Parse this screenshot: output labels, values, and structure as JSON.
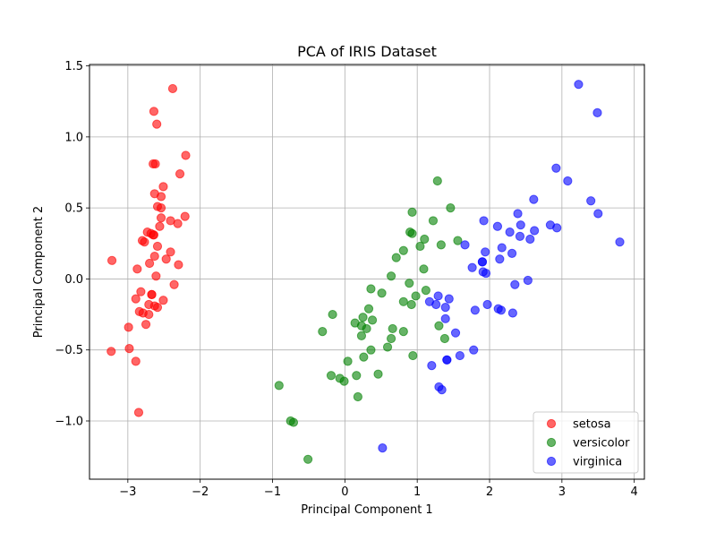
{
  "chart_data": {
    "type": "scatter",
    "title": "PCA of IRIS Dataset",
    "xlabel": "Principal Component 1",
    "ylabel": "Principal Component 2",
    "xlim": [
      -3.53,
      4.14
    ],
    "ylim": [
      -1.41,
      1.51
    ],
    "xticks": [
      -3,
      -2,
      -1,
      0,
      1,
      2,
      3,
      4
    ],
    "xtick_labels": [
      "−3",
      "−2",
      "−1",
      "0",
      "1",
      "2",
      "3",
      "4"
    ],
    "yticks": [
      -1.0,
      -0.5,
      0.0,
      0.5,
      1.0,
      1.5
    ],
    "ytick_labels": [
      "−1.0",
      "−0.5",
      "0.0",
      "0.5",
      "1.0",
      "1.5"
    ],
    "grid": true,
    "legend_position": "lower-right",
    "series": [
      {
        "name": "setosa",
        "color": "#ff0000",
        "points": [
          [
            -2.68,
            0.32
          ],
          [
            -2.71,
            -0.18
          ],
          [
            -2.89,
            -0.14
          ],
          [
            -2.75,
            -0.32
          ],
          [
            -2.73,
            0.33
          ],
          [
            -2.28,
            0.74
          ],
          [
            -2.82,
            -0.09
          ],
          [
            -2.63,
            0.16
          ],
          [
            -2.89,
            -0.58
          ],
          [
            -2.67,
            -0.11
          ],
          [
            -2.51,
            0.65
          ],
          [
            -2.61,
            0.02
          ],
          [
            -2.79,
            -0.24
          ],
          [
            -3.23,
            -0.51
          ],
          [
            -2.64,
            1.18
          ],
          [
            -2.38,
            1.34
          ],
          [
            -2.62,
            0.81
          ],
          [
            -2.65,
            0.31
          ],
          [
            -2.2,
            0.87
          ],
          [
            -2.59,
            0.51
          ],
          [
            -2.31,
            0.39
          ],
          [
            -2.54,
            0.43
          ],
          [
            -3.22,
            0.13
          ],
          [
            -2.3,
            0.1
          ],
          [
            -2.36,
            -0.04
          ],
          [
            -2.51,
            -0.15
          ],
          [
            -2.47,
            0.14
          ],
          [
            -2.56,
            0.37
          ],
          [
            -2.64,
            0.31
          ],
          [
            -2.63,
            -0.19
          ],
          [
            -2.59,
            -0.2
          ],
          [
            -2.41,
            0.41
          ],
          [
            -2.65,
            0.81
          ],
          [
            -2.6,
            1.09
          ],
          [
            -2.67,
            -0.11
          ],
          [
            -2.87,
            0.07
          ],
          [
            -2.63,
            0.6
          ],
          [
            -2.8,
            0.27
          ],
          [
            -2.98,
            -0.49
          ],
          [
            -2.59,
            0.23
          ],
          [
            -2.77,
            0.26
          ],
          [
            -2.85,
            -0.94
          ],
          [
            -2.99,
            -0.34
          ],
          [
            -2.41,
            0.19
          ],
          [
            -2.21,
            0.44
          ],
          [
            -2.71,
            -0.25
          ],
          [
            -2.54,
            0.5
          ],
          [
            -2.84,
            -0.23
          ],
          [
            -2.54,
            0.58
          ],
          [
            -2.7,
            0.11
          ]
        ]
      },
      {
        "name": "versicolor",
        "color": "#008000",
        "points": [
          [
            1.28,
            0.69
          ],
          [
            0.93,
            0.32
          ],
          [
            1.46,
            0.5
          ],
          [
            0.18,
            -0.83
          ],
          [
            1.09,
            0.07
          ],
          [
            0.64,
            -0.42
          ],
          [
            1.1,
            0.28
          ],
          [
            -0.75,
            -1.0
          ],
          [
            1.04,
            0.23
          ],
          [
            -0.01,
            -0.72
          ],
          [
            -0.51,
            -1.27
          ],
          [
            0.51,
            -0.1
          ],
          [
            0.26,
            -0.55
          ],
          [
            0.98,
            -0.12
          ],
          [
            -0.17,
            -0.25
          ],
          [
            0.93,
            0.47
          ],
          [
            0.66,
            -0.35
          ],
          [
            0.23,
            -0.33
          ],
          [
            0.94,
            -0.54
          ],
          [
            0.04,
            -0.58
          ],
          [
            1.12,
            -0.08
          ],
          [
            0.36,
            -0.07
          ],
          [
            1.3,
            -0.33
          ],
          [
            0.92,
            -0.18
          ],
          [
            0.71,
            0.15
          ],
          [
            0.9,
            0.33
          ],
          [
            1.33,
            0.24
          ],
          [
            1.56,
            0.27
          ],
          [
            0.81,
            -0.16
          ],
          [
            -0.31,
            -0.37
          ],
          [
            -0.07,
            -0.7
          ],
          [
            -0.19,
            -0.68
          ],
          [
            0.14,
            -0.31
          ],
          [
            1.38,
            -0.42
          ],
          [
            0.59,
            -0.48
          ],
          [
            0.81,
            0.2
          ],
          [
            1.22,
            0.41
          ],
          [
            0.81,
            -0.37
          ],
          [
            0.25,
            -0.27
          ],
          [
            0.16,
            -0.68
          ],
          [
            0.46,
            -0.67
          ],
          [
            0.89,
            -0.03
          ],
          [
            0.23,
            -0.4
          ],
          [
            -0.71,
            -1.01
          ],
          [
            0.36,
            -0.5
          ],
          [
            0.33,
            -0.21
          ],
          [
            0.38,
            -0.29
          ],
          [
            0.64,
            0.02
          ],
          [
            -0.91,
            -0.75
          ],
          [
            0.3,
            -0.35
          ]
        ]
      },
      {
        "name": "virginica",
        "color": "#0000ff",
        "points": [
          [
            2.53,
            -0.01
          ],
          [
            1.41,
            -0.57
          ],
          [
            2.62,
            0.34
          ],
          [
            1.97,
            -0.18
          ],
          [
            2.35,
            -0.04
          ],
          [
            3.4,
            0.55
          ],
          [
            0.52,
            -1.19
          ],
          [
            2.93,
            0.36
          ],
          [
            2.32,
            -0.24
          ],
          [
            2.92,
            0.78
          ],
          [
            1.66,
            0.24
          ],
          [
            1.8,
            -0.22
          ],
          [
            2.17,
            0.22
          ],
          [
            1.34,
            -0.78
          ],
          [
            1.59,
            -0.54
          ],
          [
            1.9,
            0.12
          ],
          [
            1.95,
            0.04
          ],
          [
            3.49,
            1.17
          ],
          [
            3.8,
            0.26
          ],
          [
            1.3,
            -0.76
          ],
          [
            2.43,
            0.38
          ],
          [
            1.2,
            -0.61
          ],
          [
            3.5,
            0.46
          ],
          [
            1.39,
            -0.2
          ],
          [
            2.28,
            0.33
          ],
          [
            2.61,
            0.56
          ],
          [
            1.26,
            -0.18
          ],
          [
            1.29,
            -0.12
          ],
          [
            2.12,
            -0.21
          ],
          [
            2.39,
            0.46
          ],
          [
            2.84,
            0.38
          ],
          [
            3.23,
            1.37
          ],
          [
            2.16,
            -0.22
          ],
          [
            1.44,
            -0.14
          ],
          [
            1.78,
            -0.5
          ],
          [
            3.08,
            0.69
          ],
          [
            2.14,
            0.14
          ],
          [
            1.91,
            0.05
          ],
          [
            1.17,
            -0.16
          ],
          [
            2.11,
            0.37
          ],
          [
            2.31,
            0.18
          ],
          [
            1.92,
            0.41
          ],
          [
            1.41,
            -0.57
          ],
          [
            2.56,
            0.28
          ],
          [
            2.42,
            0.3
          ],
          [
            1.94,
            0.19
          ],
          [
            1.53,
            -0.38
          ],
          [
            1.76,
            0.08
          ],
          [
            1.9,
            0.12
          ],
          [
            1.39,
            -0.28
          ]
        ]
      }
    ]
  }
}
